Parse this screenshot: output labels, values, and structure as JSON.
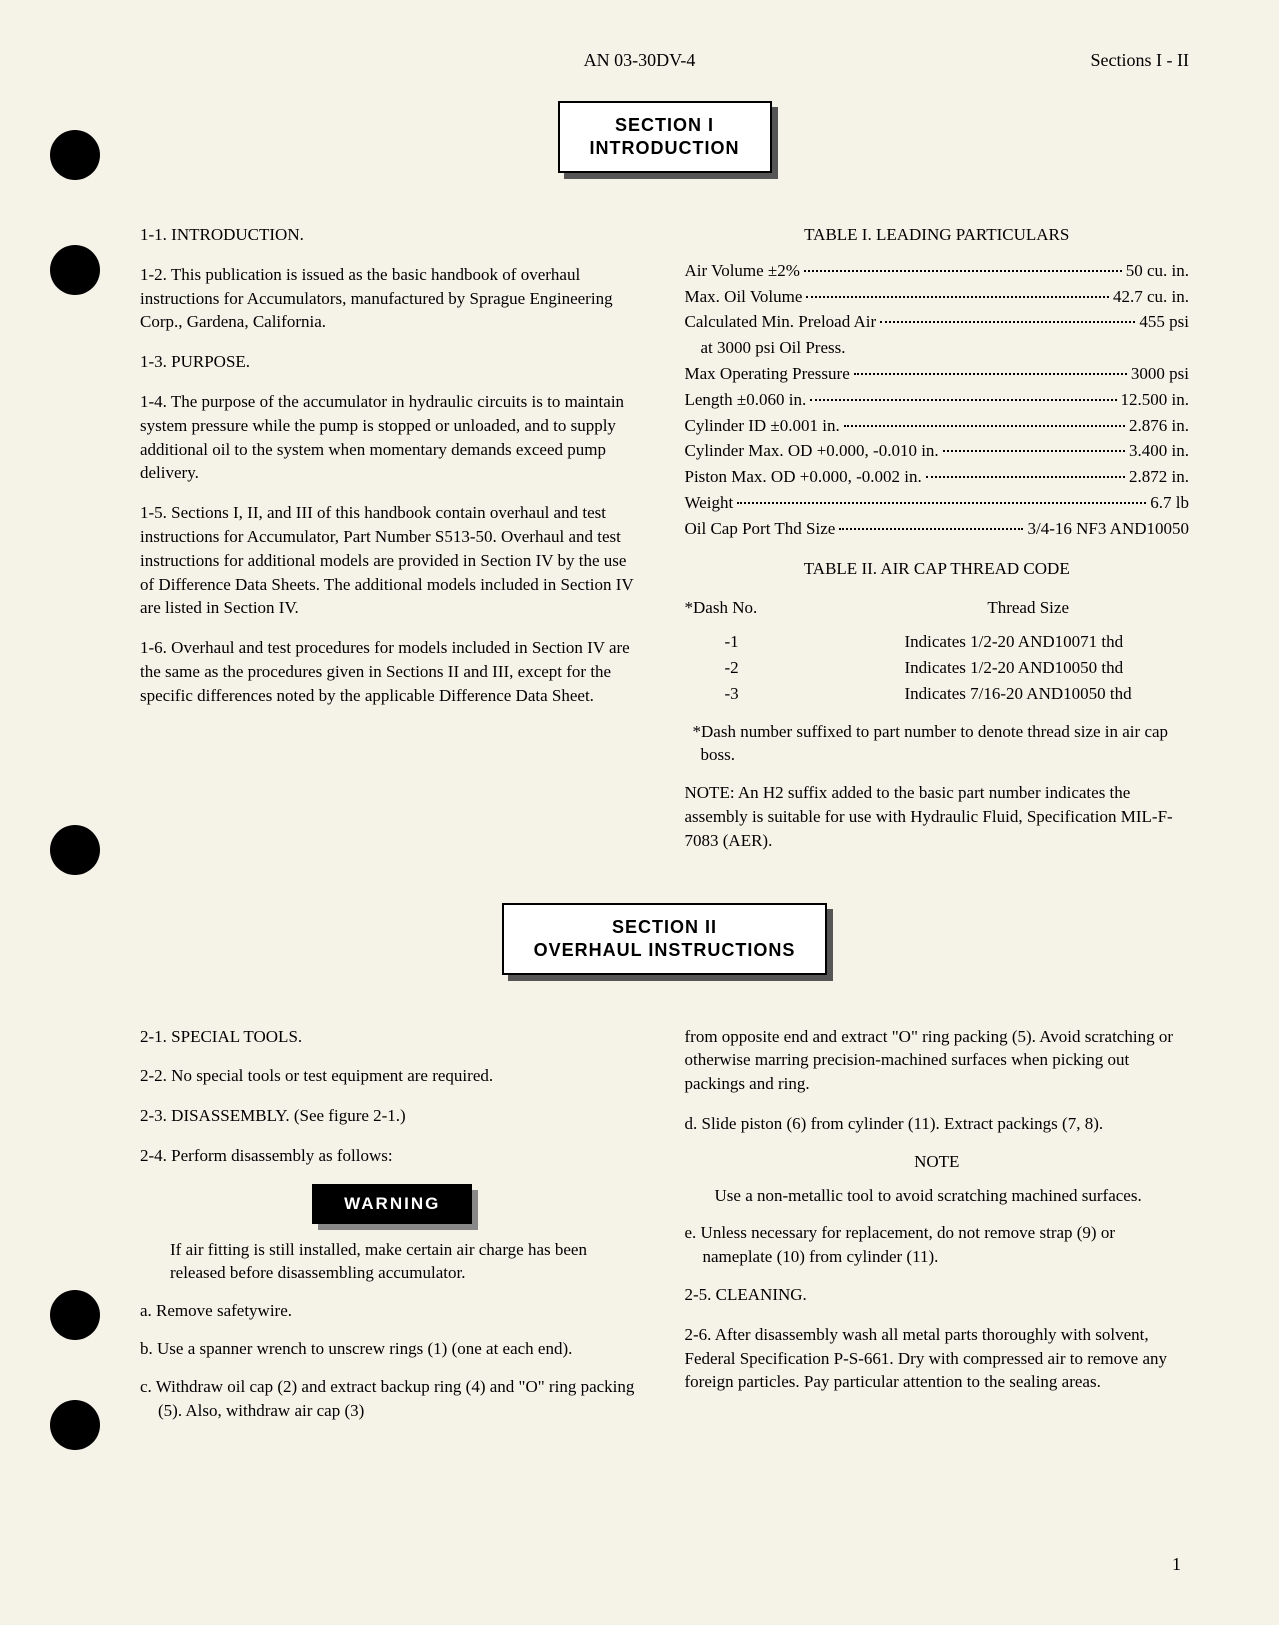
{
  "header": {
    "center": "AN 03-30DV-4",
    "right": "Sections I - II"
  },
  "section1": {
    "box_line1": "SECTION I",
    "box_line2": "INTRODUCTION",
    "h1_1": "1-1. INTRODUCTION.",
    "p1_2": "1-2. This publication is issued as the basic handbook of overhaul instructions for Accumulators, manufactured by Sprague Engineering Corp., Gardena, California.",
    "h1_3": "1-3. PURPOSE.",
    "p1_4": "1-4. The purpose of the accumulator in hydraulic circuits is to maintain system pressure while the pump is stopped or unloaded, and to supply additional oil to the system when momentary demands exceed pump delivery.",
    "p1_5": "1-5. Sections I, II, and III of this handbook contain overhaul and test instructions for Accumulator, Part Number S513-50. Overhaul and test instructions for additional models are provided in Section IV by the use of Difference Data Sheets. The additional models included in Section IV are listed in Section IV.",
    "p1_6": "1-6. Overhaul and test procedures for models included in Section IV are the same as the procedures given in Sections II and III, except for the specific differences noted by the applicable Difference Data Sheet.",
    "table1_title": "TABLE I. LEADING PARTICULARS",
    "table1_rows": [
      {
        "label": "Air Volume ±2%",
        "value": "50 cu. in."
      },
      {
        "label": "Max. Oil Volume",
        "value": "42.7 cu. in."
      },
      {
        "label": "Calculated Min. Preload Air",
        "value": "455 psi"
      },
      {
        "label": "at 3000 psi Oil Press.",
        "value": "",
        "indent": true,
        "nodots": true
      },
      {
        "label": "Max Operating Pressure",
        "value": "3000 psi"
      },
      {
        "label": "Length ±0.060 in.",
        "value": "12.500 in."
      },
      {
        "label": "Cylinder ID ±0.001 in.",
        "value": "2.876 in."
      },
      {
        "label": "Cylinder Max. OD +0.000, -0.010 in.",
        "value": "3.400 in."
      },
      {
        "label": "Piston Max. OD +0.000, -0.002 in.",
        "value": "2.872 in."
      },
      {
        "label": "Weight",
        "value": "6.7 lb"
      },
      {
        "label": "Oil Cap Port Thd Size",
        "value": "3/4-16 NF3 AND10050"
      }
    ],
    "table2_title": "TABLE II. AIR CAP THREAD CODE",
    "table2_col1": "*Dash No.",
    "table2_col2": "Thread Size",
    "table2_rows": [
      {
        "dash": "-1",
        "size": "Indicates 1/2-20 AND10071 thd"
      },
      {
        "dash": "-2",
        "size": "Indicates 1/2-20 AND10050 thd"
      },
      {
        "dash": "-3",
        "size": "Indicates 7/16-20 AND10050 thd"
      }
    ],
    "footnote": "*Dash number suffixed to part number to denote thread size in air cap boss.",
    "note": "NOTE: An H2 suffix added to the basic part number indicates the assembly is suitable for use with Hydraulic Fluid, Specification MIL-F-7083 (AER)."
  },
  "section2": {
    "box_line1": "SECTION II",
    "box_line2": "OVERHAUL INSTRUCTIONS",
    "h2_1": "2-1. SPECIAL TOOLS.",
    "p2_2": "2-2. No special tools or test equipment are required.",
    "h2_3": "2-3. DISASSEMBLY. (See figure 2-1.)",
    "p2_4": "2-4. Perform disassembly as follows:",
    "warning_label": "WARNING",
    "warning_text": "If air fitting is still installed, make certain air charge has been released before disassembling accumulator.",
    "step_a": "a. Remove safetywire.",
    "step_b": "b. Use a spanner wrench to unscrew rings (1) (one at each end).",
    "step_c": "c. Withdraw oil cap (2) and extract backup ring (4) and \"O\" ring packing (5). Also, withdraw air cap (3)",
    "col2_cont": "from opposite end and extract \"O\" ring packing (5). Avoid scratching or otherwise marring precision-machined surfaces when picking out packings and ring.",
    "step_d": "d. Slide piston (6) from cylinder (11). Extract packings (7, 8).",
    "note_label": "NOTE",
    "note_text": "Use a non-metallic tool to avoid scratching machined surfaces.",
    "step_e": "e. Unless necessary for replacement, do not remove strap (9) or nameplate (10) from cylinder (11).",
    "h2_5": "2-5. CLEANING.",
    "p2_6": "2-6. After disassembly wash all metal parts thoroughly with solvent, Federal Specification P-S-661. Dry with compressed air to remove any foreign particles. Pay particular attention to the sealing areas."
  },
  "page_number": "1",
  "punch_holes": [
    130,
    245,
    825,
    1290,
    1400
  ]
}
